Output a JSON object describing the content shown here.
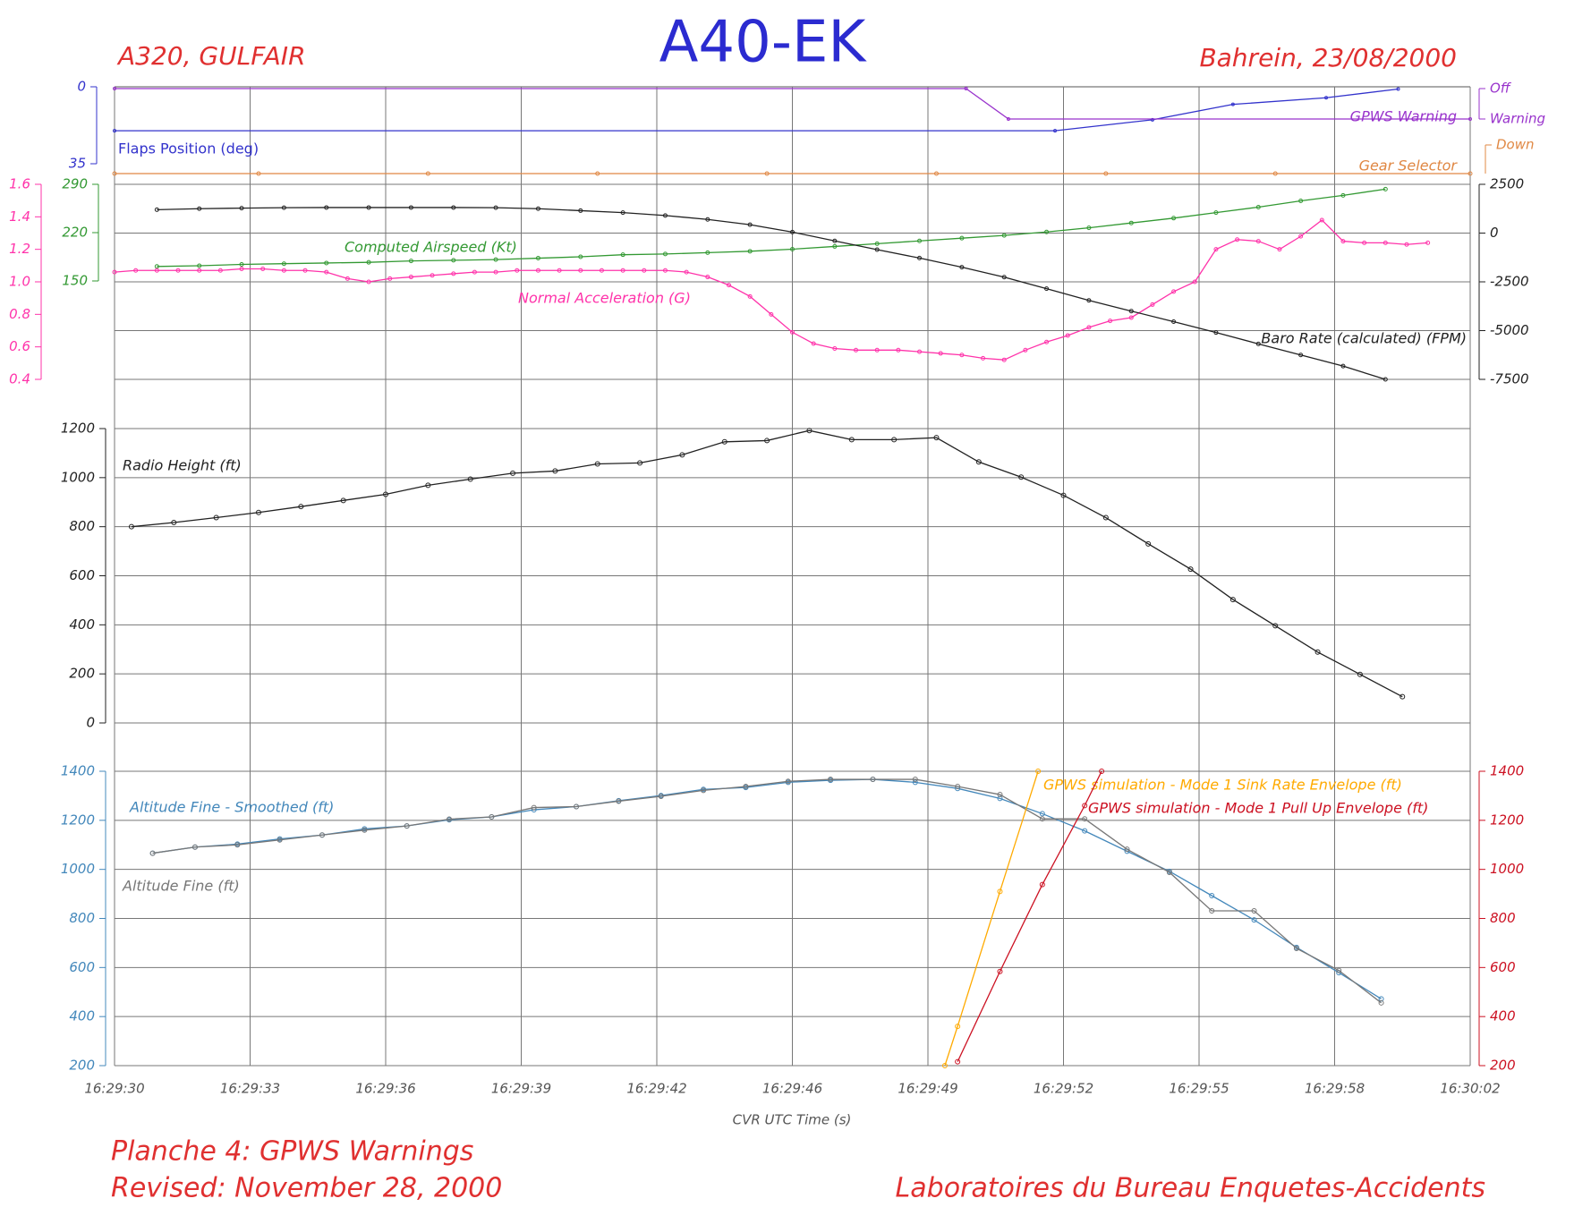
{
  "header": {
    "title": "A40-EK",
    "left": "A320, GULFAIR",
    "right": "Bahrein, 23/08/2000"
  },
  "footer": {
    "line1": "Planche 4: GPWS Warnings",
    "line2": "Revised: November 28, 2000",
    "right": "Laboratoires du Bureau Enquetes-Accidents"
  },
  "chart_data": [
    {
      "type": "line",
      "y_inverted": true,
      "ylim": [
        0,
        35
      ],
      "yticks": [
        0,
        35
      ],
      "y2_inverted": true,
      "y2lim": [
        0,
        1
      ],
      "y2ticks": [
        {
          "value": 0,
          "label": "Off"
        },
        {
          "value": 1,
          "label": "Warning"
        }
      ],
      "series": [
        {
          "name": "Flaps Position (deg)",
          "color": "#3333cc",
          "x": [
            "16:29:30.0",
            "16:29:52.2",
            "16:29:54.5",
            "16:29:56.4",
            "16:29:58.6",
            "16:30:00.3"
          ],
          "values": [
            20,
            20,
            15,
            8,
            5,
            1
          ]
        },
        {
          "name": "GPWS Warning",
          "color": "#9933cc",
          "axis": "y2",
          "x": [
            "16:29:30.0",
            "16:29:50.1",
            "16:29:51.1",
            "16:30:02.0"
          ],
          "values": [
            0,
            0,
            1,
            1
          ]
        }
      ]
    },
    {
      "type": "line",
      "ylim": [
        0,
        1
      ],
      "yticks": [
        {
          "value": 1,
          "label": "Down"
        }
      ],
      "series": [
        {
          "name": "Gear Selector",
          "color": "#e08844",
          "x": [
            "16:29:30.0",
            "16:29:33.4",
            "16:29:37.4",
            "16:29:41.4",
            "16:29:45.4",
            "16:29:49.4",
            "16:29:53.4",
            "16:29:57.4",
            "16:30:02.0"
          ],
          "values": [
            1,
            1,
            1,
            1,
            1,
            1,
            1,
            1,
            1
          ]
        }
      ]
    },
    {
      "type": "line",
      "grid": true,
      "ylim": [
        0.4,
        1.6
      ],
      "yticks": [
        1.6,
        1.4,
        1.2,
        {
          "value": 1,
          "label": "1.0"
        },
        0.8,
        0.6,
        0.4
      ],
      "y2lim": [
        -7500,
        2500
      ],
      "y2ticks": [
        2500,
        0,
        -2500,
        -5000,
        -7500
      ],
      "y3lim": [
        150,
        290
      ],
      "y3ticks": [
        290,
        220,
        150
      ],
      "series": [
        {
          "name": "Computed Airspeed (Kt)",
          "color": "#339933",
          "axis": "y3",
          "x": [
            "16:29:31.0",
            "16:29:32.0",
            "16:29:33.0",
            "16:29:34.0",
            "16:29:35.0",
            "16:29:36.0",
            "16:29:37.0",
            "16:29:38.0",
            "16:29:39.0",
            "16:29:40.0",
            "16:29:41.0",
            "16:29:42.0",
            "16:29:43.0",
            "16:29:44.0",
            "16:29:45.0",
            "16:29:46.0",
            "16:29:47.0",
            "16:29:48.0",
            "16:29:49.0",
            "16:29:50.0",
            "16:29:51.0",
            "16:29:52.0",
            "16:29:53.0",
            "16:29:54.0",
            "16:29:55.0",
            "16:29:56.0",
            "16:29:57.0",
            "16:29:58.0",
            "16:29:59.0",
            "16:30:00.0"
          ],
          "values": [
            171,
            172,
            174,
            175,
            176,
            177,
            179,
            180,
            181,
            183,
            185,
            188,
            189,
            191,
            193,
            196,
            200,
            204,
            208,
            212,
            216,
            221,
            227,
            234,
            241,
            249,
            257,
            266,
            274,
            283
          ]
        },
        {
          "name": "Normal Acceleration (G)",
          "color": "#ff33aa",
          "x": [
            "16:29:30.0",
            "16:29:30.5",
            "16:29:31.0",
            "16:29:31.5",
            "16:29:32.0",
            "16:29:32.5",
            "16:29:33.0",
            "16:29:33.5",
            "16:29:34.0",
            "16:29:34.5",
            "16:29:35.0",
            "16:29:35.5",
            "16:29:36.0",
            "16:29:36.5",
            "16:29:37.0",
            "16:29:37.5",
            "16:29:38.0",
            "16:29:38.5",
            "16:29:39.0",
            "16:29:39.5",
            "16:29:40.0",
            "16:29:40.5",
            "16:29:41.0",
            "16:29:41.5",
            "16:29:42.0",
            "16:29:42.5",
            "16:29:43.0",
            "16:29:43.5",
            "16:29:44.0",
            "16:29:44.5",
            "16:29:45.0",
            "16:29:45.5",
            "16:29:46.0",
            "16:29:46.5",
            "16:29:47.0",
            "16:29:47.5",
            "16:29:48.0",
            "16:29:48.5",
            "16:29:49.0",
            "16:29:49.5",
            "16:29:50.0",
            "16:29:50.5",
            "16:29:51.0",
            "16:29:51.5",
            "16:29:52.0",
            "16:29:52.5",
            "16:29:53.0",
            "16:29:53.5",
            "16:29:54.0",
            "16:29:54.5",
            "16:29:55.0",
            "16:29:55.5",
            "16:29:56.0",
            "16:29:56.5",
            "16:29:57.0",
            "16:29:57.5",
            "16:29:58.0",
            "16:29:58.5",
            "16:29:59.0",
            "16:29:59.5",
            "16:30:00.0",
            "16:30:00.5",
            "16:30:01.0"
          ],
          "values": [
            1.06,
            1.07,
            1.07,
            1.07,
            1.07,
            1.07,
            1.08,
            1.08,
            1.07,
            1.07,
            1.06,
            1.02,
            1.0,
            1.02,
            1.03,
            1.04,
            1.05,
            1.06,
            1.06,
            1.07,
            1.07,
            1.07,
            1.07,
            1.07,
            1.07,
            1.07,
            1.07,
            1.06,
            1.03,
            0.98,
            0.91,
            0.8,
            0.69,
            0.62,
            0.59,
            0.58,
            0.58,
            0.58,
            0.57,
            0.56,
            0.55,
            0.53,
            0.52,
            0.58,
            0.63,
            0.67,
            0.72,
            0.76,
            0.78,
            0.86,
            0.94,
            1.0,
            1.2,
            1.26,
            1.25,
            1.2,
            1.28,
            1.38,
            1.25,
            1.24,
            1.24,
            1.23,
            1.24
          ]
        },
        {
          "name": "Baro Rate (calculated) (FPM)",
          "color": "#222222",
          "axis": "y2",
          "x": [
            "16:29:31.0",
            "16:29:32.0",
            "16:29:33.0",
            "16:29:34.0",
            "16:29:35.0",
            "16:29:36.0",
            "16:29:37.0",
            "16:29:38.0",
            "16:29:39.0",
            "16:29:40.0",
            "16:29:41.0",
            "16:29:42.0",
            "16:29:43.0",
            "16:29:44.0",
            "16:29:45.0",
            "16:29:46.0",
            "16:29:47.0",
            "16:29:48.0",
            "16:29:49.0",
            "16:29:50.0",
            "16:29:51.0",
            "16:29:52.0",
            "16:29:53.0",
            "16:29:54.0",
            "16:29:55.0",
            "16:29:56.0",
            "16:29:57.0",
            "16:29:58.0",
            "16:29:59.0",
            "16:30:00.0"
          ],
          "values": [
            1200,
            1250,
            1280,
            1300,
            1310,
            1310,
            1310,
            1310,
            1300,
            1250,
            1150,
            1050,
            900,
            700,
            430,
            50,
            -400,
            -850,
            -1280,
            -1750,
            -2260,
            -2850,
            -3450,
            -4000,
            -4540,
            -5100,
            -5680,
            -6250,
            -6820,
            -7500
          ]
        }
      ]
    },
    {
      "type": "line",
      "grid": true,
      "ylim": [
        0,
        1200
      ],
      "yticks": [
        1200,
        1000,
        800,
        600,
        400,
        200,
        0
      ],
      "series": [
        {
          "name": "Radio Height (ft)",
          "color": "#222222",
          "x": [
            "16:29:30.4",
            "16:29:31.4",
            "16:29:32.4",
            "16:29:33.4",
            "16:29:34.4",
            "16:29:35.4",
            "16:29:36.4",
            "16:29:37.4",
            "16:29:38.4",
            "16:29:39.4",
            "16:29:40.4",
            "16:29:41.4",
            "16:29:42.4",
            "16:29:43.4",
            "16:29:44.4",
            "16:29:45.4",
            "16:29:46.4",
            "16:29:47.4",
            "16:29:48.4",
            "16:29:49.4",
            "16:29:50.4",
            "16:29:51.4",
            "16:29:52.4",
            "16:29:53.4",
            "16:29:54.4",
            "16:29:55.4",
            "16:29:56.4",
            "16:29:57.4",
            "16:29:58.4",
            "16:29:59.4",
            "16:30:00.4"
          ],
          "values": [
            800,
            817,
            837,
            858,
            882,
            907,
            932,
            969,
            994,
            1018,
            1027,
            1056,
            1060,
            1093,
            1146,
            1151,
            1192,
            1155,
            1155,
            1163,
            1064,
            1002,
            928,
            837,
            730,
            627,
            503,
            396,
            289,
            198,
            107
          ]
        }
      ]
    },
    {
      "type": "line",
      "grid": true,
      "ylim": [
        200,
        1400
      ],
      "yticks": [
        1400,
        1200,
        1000,
        800,
        600,
        400,
        200
      ],
      "y2lim": [
        200,
        1400
      ],
      "y2ticks": [
        1400,
        1200,
        1000,
        800,
        600,
        400,
        200
      ],
      "xlim": [
        "16:29:30.0",
        "16:30:02.0"
      ],
      "xticks": [
        {
          "value": "16:29:30.0",
          "label": "16:29:30"
        },
        {
          "value": "16:29:33.2",
          "label": "16:29:33"
        },
        {
          "value": "16:29:36.4",
          "label": "16:29:36"
        },
        {
          "value": "16:29:39.6",
          "label": "16:29:39"
        },
        {
          "value": "16:29:42.8",
          "label": "16:29:42"
        },
        {
          "value": "16:29:46.0",
          "label": "16:29:46"
        },
        {
          "value": "16:29:49.2",
          "label": "16:29:49"
        },
        {
          "value": "16:29:52.4",
          "label": "16:29:52"
        },
        {
          "value": "16:29:55.6",
          "label": "16:29:55"
        },
        {
          "value": "16:29:58.8",
          "label": "16:29:58"
        },
        {
          "value": "16:30:02.0",
          "label": "16:30:02"
        }
      ],
      "x_label": "CVR UTC Time (s)",
      "series": [
        {
          "name": "Altitude Fine - Smoothed (ft)",
          "color": "#4488bb",
          "x": [
            "16:29:30.9",
            "16:29:31.9",
            "16:29:32.9",
            "16:29:33.9",
            "16:29:34.9",
            "16:29:35.9",
            "16:29:36.9",
            "16:29:37.9",
            "16:29:38.9",
            "16:29:39.9",
            "16:29:40.9",
            "16:29:41.9",
            "16:29:42.9",
            "16:29:43.9",
            "16:29:44.9",
            "16:29:45.9",
            "16:29:46.9",
            "16:29:47.9",
            "16:29:48.9",
            "16:29:49.9",
            "16:29:50.9",
            "16:29:51.9",
            "16:29:52.9",
            "16:29:53.9",
            "16:29:54.9",
            "16:29:55.9",
            "16:29:56.9",
            "16:29:57.9",
            "16:29:58.9",
            "16:29:59.9"
          ],
          "values": [
            1066,
            1091,
            1103,
            1124,
            1140,
            1165,
            1177,
            1202,
            1214,
            1243,
            1256,
            1280,
            1301,
            1326,
            1334,
            1355,
            1363,
            1367,
            1355,
            1330,
            1289,
            1227,
            1157,
            1074,
            992,
            893,
            794,
            682,
            579,
            472
          ]
        },
        {
          "name": "Altitude Fine (ft)",
          "color": "#777777",
          "x": [
            "16:29:30.9",
            "16:29:31.9",
            "16:29:32.9",
            "16:29:33.9",
            "16:29:34.9",
            "16:29:35.9",
            "16:29:36.9",
            "16:29:37.9",
            "16:29:38.9",
            "16:29:39.9",
            "16:29:40.9",
            "16:29:41.9",
            "16:29:42.9",
            "16:29:43.9",
            "16:29:44.9",
            "16:29:45.9",
            "16:29:46.9",
            "16:29:47.9",
            "16:29:48.9",
            "16:29:49.9",
            "16:29:50.9",
            "16:29:51.9",
            "16:29:52.9",
            "16:29:53.9",
            "16:29:54.9",
            "16:29:55.9",
            "16:29:56.9",
            "16:29:57.9",
            "16:29:58.9",
            "16:29:59.9"
          ],
          "values": [
            1066,
            1091,
            1100,
            1120,
            1140,
            1160,
            1177,
            1205,
            1214,
            1252,
            1256,
            1278,
            1298,
            1322,
            1338,
            1359,
            1367,
            1367,
            1367,
            1338,
            1305,
            1206,
            1206,
            1082,
            988,
            831,
            831,
            678,
            588,
            456
          ]
        },
        {
          "name": "GPWS simulation - Mode 1 Sink Rate Envelope (ft)",
          "color": "#ffaa00",
          "x": [
            "16:29:49.6",
            "16:29:49.9",
            "16:29:50.9",
            "16:29:51.8"
          ],
          "values": [
            200,
            360,
            910,
            1400
          ]
        },
        {
          "name": "GPWS simulation - Mode 1 Pull Up Envelope (ft)",
          "color": "#cc1122",
          "axis": "y2",
          "x": [
            "16:29:49.9",
            "16:29:50.9",
            "16:29:51.9",
            "16:29:52.9",
            "16:29:53.3"
          ],
          "values": [
            216,
            584,
            938,
            1260,
            1400
          ]
        }
      ]
    }
  ]
}
